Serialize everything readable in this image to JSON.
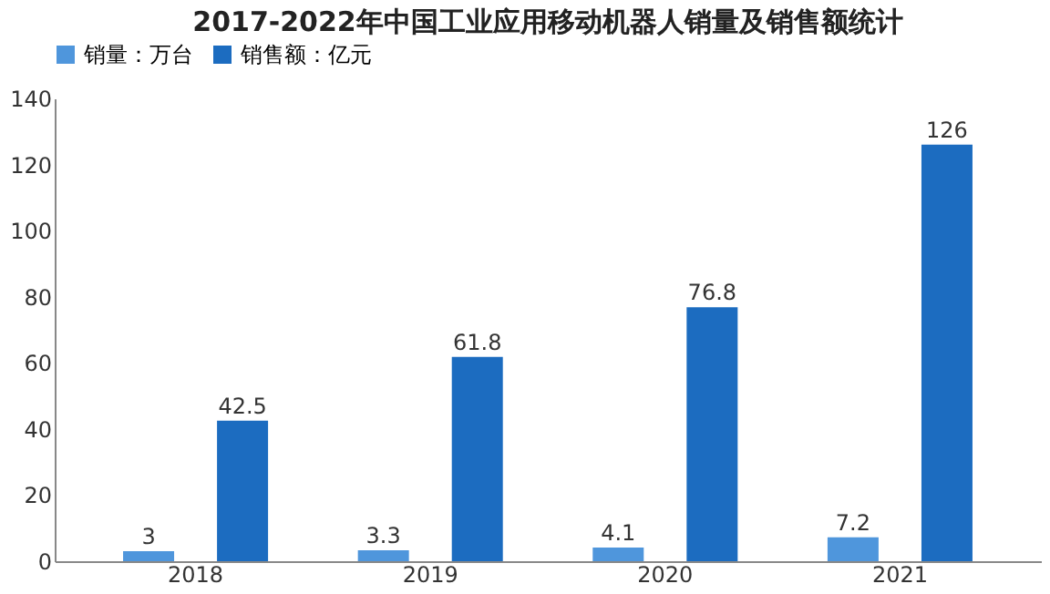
{
  "chart_data": {
    "type": "bar",
    "title": "2017-2022年中国工业应用移动机器人销量及销售额统计",
    "categories": [
      "2018",
      "2019",
      "2020",
      "2021"
    ],
    "series": [
      {
        "name": "销量：万台",
        "color": "#4f96dc",
        "values": [
          3,
          3.3,
          4.1,
          7.2
        ]
      },
      {
        "name": "销售额：亿元",
        "color": "#1c6cc0",
        "values": [
          42.5,
          61.8,
          76.8,
          126
        ]
      }
    ],
    "ylim": [
      0,
      140
    ],
    "yticks": [
      0,
      20,
      40,
      60,
      80,
      100,
      120,
      140
    ],
    "grid": false,
    "legend": "top",
    "data_labels": true
  }
}
